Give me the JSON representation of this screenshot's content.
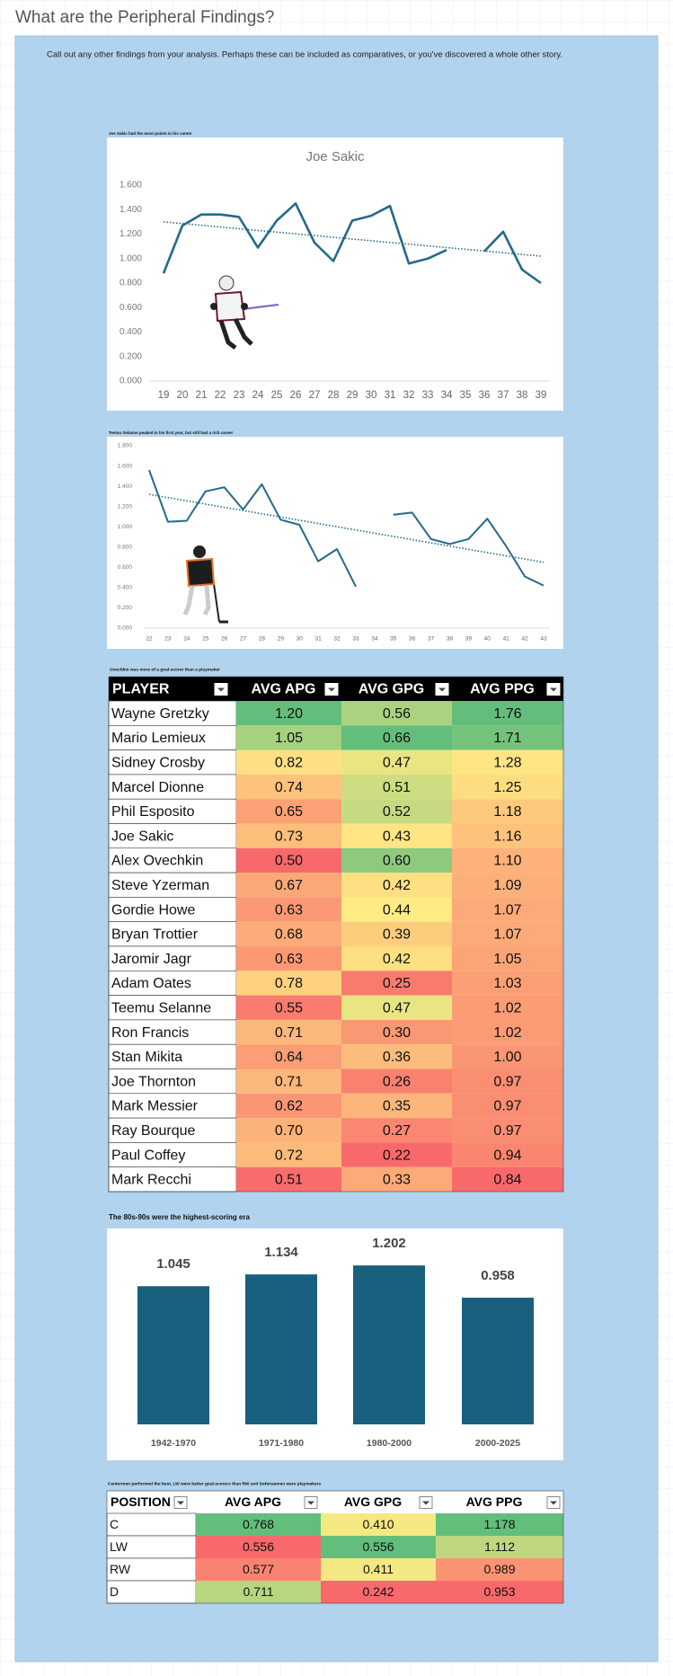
{
  "header": {
    "title": "What are the Peripheral Findings?"
  },
  "intro": "Call out any other findings from your analysis. Perhaps these can be included as comparatives, or you've discovered a whole other story.",
  "charts": [
    {
      "caption": "Joe Sakic had the most points in his career",
      "type": "line",
      "title": "Joe Sakic",
      "x": [
        19,
        20,
        21,
        22,
        23,
        24,
        25,
        26,
        27,
        28,
        29,
        30,
        31,
        32,
        33,
        34,
        35,
        36,
        37,
        38,
        39
      ],
      "values": [
        0.88,
        1.27,
        1.36,
        1.36,
        1.34,
        1.09,
        1.31,
        1.45,
        1.13,
        0.98,
        1.31,
        1.35,
        1.43,
        0.96,
        1.0,
        1.07,
        null,
        1.06,
        1.22,
        0.91,
        0.8
      ],
      "trendline": [
        1.3,
        1.02
      ],
      "color": "#236a8c",
      "ylim": [
        0,
        1.6
      ],
      "yticks": [
        {
          "value": 0,
          "label": "0.000"
        },
        {
          "value": 0.2,
          "label": "0.200"
        },
        {
          "value": 0.4,
          "label": "0.400"
        },
        {
          "value": 0.6,
          "label": "0.600"
        },
        {
          "value": 0.8,
          "label": "0.800"
        },
        {
          "value": 1,
          "label": "1.000"
        },
        {
          "value": 1.2,
          "label": "1.200"
        },
        {
          "value": 1.4,
          "label": "1.400"
        },
        {
          "value": 1.6,
          "label": "1.600"
        }
      ]
    },
    {
      "caption": "Teemu Selanne peaked in his first year, but still had a rich career",
      "type": "line",
      "x": [
        22,
        23,
        24,
        25,
        26,
        27,
        28,
        29,
        30,
        31,
        32,
        33,
        34,
        35,
        36,
        37,
        38,
        39,
        40,
        41,
        42,
        43
      ],
      "values": [
        1.56,
        1.05,
        1.06,
        1.35,
        1.39,
        1.17,
        1.42,
        1.07,
        1.02,
        0.66,
        0.78,
        0.41,
        null,
        1.12,
        1.14,
        0.88,
        0.83,
        0.88,
        1.08,
        0.81,
        0.51,
        0.42
      ],
      "trendline": [
        1.32,
        0.65
      ],
      "color": "#236a8c",
      "ylim": [
        0,
        1.8
      ],
      "yticks": [
        {
          "value": 0,
          "label": "0.000"
        },
        {
          "value": 0.2,
          "label": "0.200"
        },
        {
          "value": 0.4,
          "label": "0.400"
        },
        {
          "value": 0.6,
          "label": "0.600"
        },
        {
          "value": 0.8,
          "label": "0.800"
        },
        {
          "value": 1,
          "label": "1.000"
        },
        {
          "value": 1.2,
          "label": "1.200"
        },
        {
          "value": 1.4,
          "label": "1.400"
        },
        {
          "value": 1.6,
          "label": "1.600"
        },
        {
          "value": 1.8,
          "label": "1.800"
        }
      ]
    },
    {
      "caption": "The 80s-90s were the highest-scoring era",
      "type": "bar",
      "categories": [
        "1942-1970",
        "1971-1980",
        "1980-2000",
        "2000-2025"
      ],
      "values": [
        1.045,
        1.134,
        1.202,
        0.958
      ],
      "color": "#19607f",
      "ylim": [
        0,
        1.4
      ]
    }
  ],
  "tables": [
    {
      "caption": "Ovechkin was more of a goal-scorer than a playmaker",
      "columns": [
        "PLAYER",
        "AVG APG",
        "AVG GPG",
        "AVG PPG"
      ],
      "rows": [
        [
          "Wayne Gretzky",
          "1.20",
          "0.56",
          "1.76"
        ],
        [
          "Mario Lemieux",
          "1.05",
          "0.66",
          "1.71"
        ],
        [
          "Sidney Crosby",
          "0.82",
          "0.47",
          "1.28"
        ],
        [
          "Marcel Dionne",
          "0.74",
          "0.51",
          "1.25"
        ],
        [
          "Phil Esposito",
          "0.65",
          "0.52",
          "1.18"
        ],
        [
          "Joe Sakic",
          "0.73",
          "0.43",
          "1.16"
        ],
        [
          "Alex Ovechkin",
          "0.50",
          "0.60",
          "1.10"
        ],
        [
          "Steve Yzerman",
          "0.67",
          "0.42",
          "1.09"
        ],
        [
          "Gordie Howe",
          "0.63",
          "0.44",
          "1.07"
        ],
        [
          "Bryan Trottier",
          "0.68",
          "0.39",
          "1.07"
        ],
        [
          "Jaromir Jagr",
          "0.63",
          "0.42",
          "1.05"
        ],
        [
          "Adam Oates",
          "0.78",
          "0.25",
          "1.03"
        ],
        [
          "Teemu Selanne",
          "0.55",
          "0.47",
          "1.02"
        ],
        [
          "Ron Francis",
          "0.71",
          "0.30",
          "1.02"
        ],
        [
          "Stan Mikita",
          "0.64",
          "0.36",
          "1.00"
        ],
        [
          "Joe Thornton",
          "0.71",
          "0.26",
          "0.97"
        ],
        [
          "Mark Messier",
          "0.62",
          "0.35",
          "0.97"
        ],
        [
          "Ray Bourque",
          "0.70",
          "0.27",
          "0.97"
        ],
        [
          "Paul Coffey",
          "0.72",
          "0.22",
          "0.94"
        ],
        [
          "Mark Recchi",
          "0.51",
          "0.33",
          "0.84"
        ]
      ]
    },
    {
      "caption": "Centermen performed the best, LW were better goal-scorers than RW and Defensemen were playmakers",
      "columns": [
        "POSITION",
        "AVG APG",
        "AVG GPG",
        "AVG PPG"
      ],
      "rows": [
        [
          "C",
          "0.768",
          "0.410",
          "1.178"
        ],
        [
          "LW",
          "0.556",
          "0.556",
          "1.112"
        ],
        [
          "RW",
          "0.577",
          "0.411",
          "0.989"
        ],
        [
          "D",
          "0.711",
          "0.242",
          "0.953"
        ]
      ]
    }
  ]
}
